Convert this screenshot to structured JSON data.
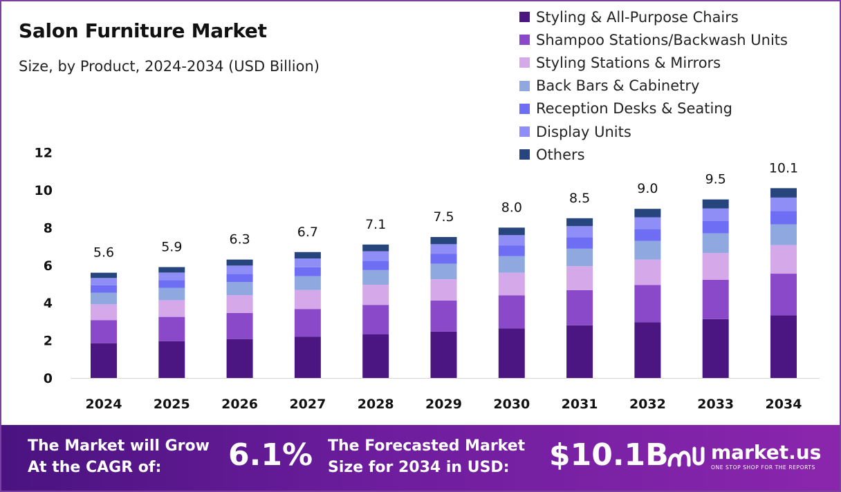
{
  "title": "Salon Furniture Market",
  "subtitle": "Size, by Product, 2024-2034 (USD Billion)",
  "colors": {
    "frame": "#7b3fa0",
    "series": [
      "#4c1682",
      "#8a49c8",
      "#d4a8e9",
      "#8fa8e0",
      "#6e6ef4",
      "#8e8ef6",
      "#25457c"
    ]
  },
  "chart_data": {
    "type": "bar",
    "stacked": true,
    "title": "Salon Furniture Market",
    "subtitle": "Size, by Product, 2024-2034 (USD Billion)",
    "xlabel": "",
    "ylabel": "",
    "ylim": [
      0,
      12
    ],
    "yticks": [
      0,
      2,
      4,
      6,
      8,
      10,
      12
    ],
    "grid": false,
    "legend_position": "top-right",
    "categories": [
      "2024",
      "2025",
      "2026",
      "2027",
      "2028",
      "2029",
      "2030",
      "2031",
      "2032",
      "2033",
      "2034"
    ],
    "totals": [
      5.6,
      5.9,
      6.3,
      6.7,
      7.1,
      7.5,
      8.0,
      8.5,
      9.0,
      9.5,
      10.1
    ],
    "total_labels": [
      "5.6",
      "5.9",
      "6.3",
      "6.7",
      "7.1",
      "7.5",
      "8.0",
      "8.5",
      "9.0",
      "9.5",
      "10.1"
    ],
    "series": [
      {
        "name": "Styling & All-Purpose Chairs",
        "values": [
          1.85,
          1.95,
          2.07,
          2.2,
          2.33,
          2.47,
          2.64,
          2.8,
          2.97,
          3.13,
          3.33
        ]
      },
      {
        "name": "Shampoo Stations/Backwash Units",
        "values": [
          1.23,
          1.3,
          1.39,
          1.47,
          1.56,
          1.65,
          1.76,
          1.87,
          1.98,
          2.09,
          2.22
        ]
      },
      {
        "name": "Styling Stations & Mirrors",
        "values": [
          0.84,
          0.89,
          0.95,
          1.01,
          1.07,
          1.13,
          1.2,
          1.28,
          1.35,
          1.43,
          1.52
        ]
      },
      {
        "name": "Back Bars & Cabinetry",
        "values": [
          0.62,
          0.65,
          0.69,
          0.74,
          0.78,
          0.83,
          0.88,
          0.93,
          0.99,
          1.05,
          1.11
        ]
      },
      {
        "name": "Reception Desks & Seating",
        "values": [
          0.39,
          0.41,
          0.44,
          0.47,
          0.5,
          0.52,
          0.56,
          0.6,
          0.63,
          0.66,
          0.71
        ]
      },
      {
        "name": "Display Units",
        "values": [
          0.39,
          0.41,
          0.44,
          0.47,
          0.5,
          0.52,
          0.56,
          0.6,
          0.63,
          0.66,
          0.71
        ]
      },
      {
        "name": "Others",
        "values": [
          0.28,
          0.29,
          0.32,
          0.34,
          0.36,
          0.38,
          0.4,
          0.42,
          0.45,
          0.48,
          0.5
        ]
      }
    ]
  },
  "banner": {
    "cagr_text_line1": "The Market will Grow",
    "cagr_text_line2": "At the CAGR of:",
    "cagr_value": "6.1%",
    "forecast_text_line1": "The Forecasted Market",
    "forecast_text_line2": "Size for 2034 in USD:",
    "forecast_value": "$10.1B",
    "logo_name": "market.us",
    "logo_tagline": "ONE STOP SHOP FOR THE REPORTS"
  }
}
